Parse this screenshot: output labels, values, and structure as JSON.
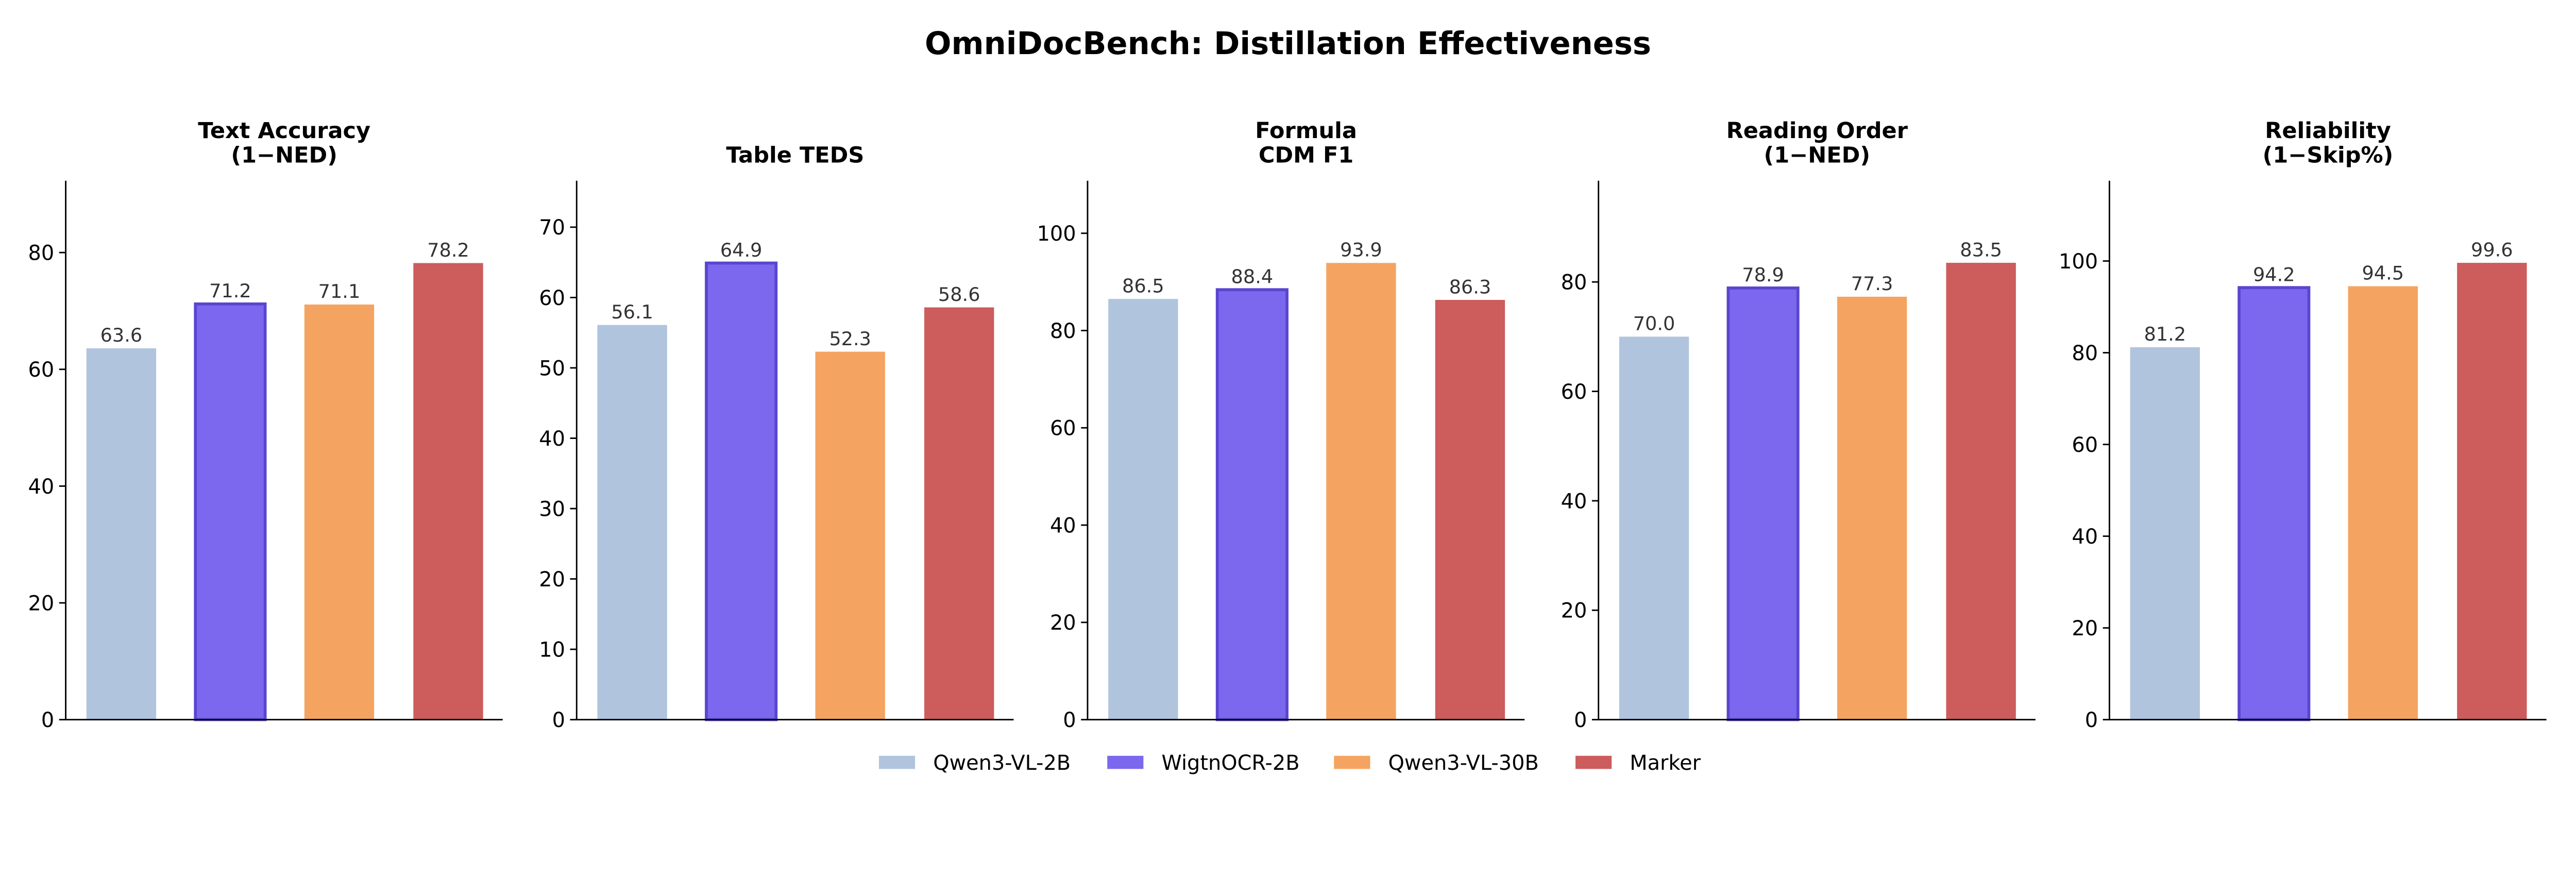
{
  "chart_data": {
    "type": "bar",
    "title": "OmniDocBench: Distillation Effectiveness",
    "legend_position": "bottom-center",
    "grid": false,
    "series_names": [
      "Qwen3-VL-2B",
      "WigtnOCR-2B",
      "Qwen3-VL-30B",
      "Marker"
    ],
    "colors": [
      "#b0c4de",
      "#7b68ee",
      "#f4a460",
      "#cd5c5c"
    ],
    "highlight_edge_color": "#5a45d0",
    "highlight_series": "WigtnOCR-2B",
    "panels": [
      {
        "title": [
          "Text Accuracy",
          "(1−NED)"
        ],
        "values": [
          63.6,
          71.2,
          71.1,
          78.2
        ],
        "ylim": [
          0,
          92.3
        ],
        "yticks": [
          0,
          20,
          40,
          60,
          80
        ]
      },
      {
        "title": [
          "Table TEDS"
        ],
        "values": [
          56.1,
          64.9,
          52.3,
          58.6
        ],
        "ylim": [
          0,
          76.6
        ],
        "yticks": [
          0,
          10,
          20,
          30,
          40,
          50,
          60,
          70
        ]
      },
      {
        "title": [
          "Formula",
          "CDM F1"
        ],
        "values": [
          86.5,
          88.4,
          93.9,
          86.3
        ],
        "ylim": [
          0,
          110.8
        ],
        "yticks": [
          0,
          20,
          40,
          60,
          80,
          100
        ]
      },
      {
        "title": [
          "Reading Order",
          "(1−NED)"
        ],
        "values": [
          70.0,
          78.9,
          77.3,
          83.5
        ],
        "ylim": [
          0,
          98.5
        ],
        "yticks": [
          0,
          20,
          40,
          60,
          80
        ]
      },
      {
        "title": [
          "Reliability",
          "(1−Skip%)"
        ],
        "values": [
          81.2,
          94.2,
          94.5,
          99.6
        ],
        "ylim": [
          0,
          117.5
        ],
        "yticks": [
          0,
          20,
          40,
          60,
          80,
          100
        ]
      }
    ]
  }
}
